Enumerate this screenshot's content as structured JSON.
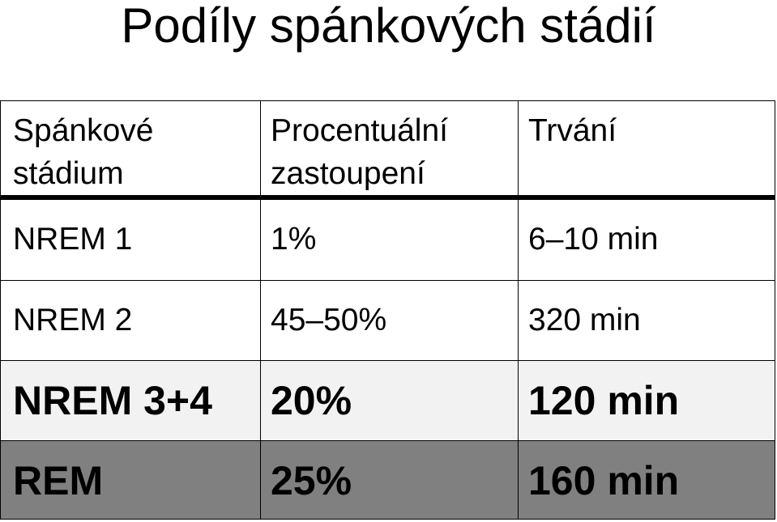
{
  "title": "Podíly spánkových stádií",
  "table": {
    "headers": [
      "Spánkové stádium",
      "Procentuální zastoupení",
      "Trvání"
    ],
    "rows": [
      [
        "NREM 1",
        "1%",
        "6–10 min"
      ],
      [
        "NREM 2",
        "45–50%",
        "320 min"
      ],
      [
        "NREM 3+4",
        "20%",
        "120 min"
      ],
      [
        "REM",
        "25%",
        "160 min"
      ]
    ]
  },
  "colors": {
    "row3_background": "#f2f2f2",
    "row4_background": "#808080"
  }
}
